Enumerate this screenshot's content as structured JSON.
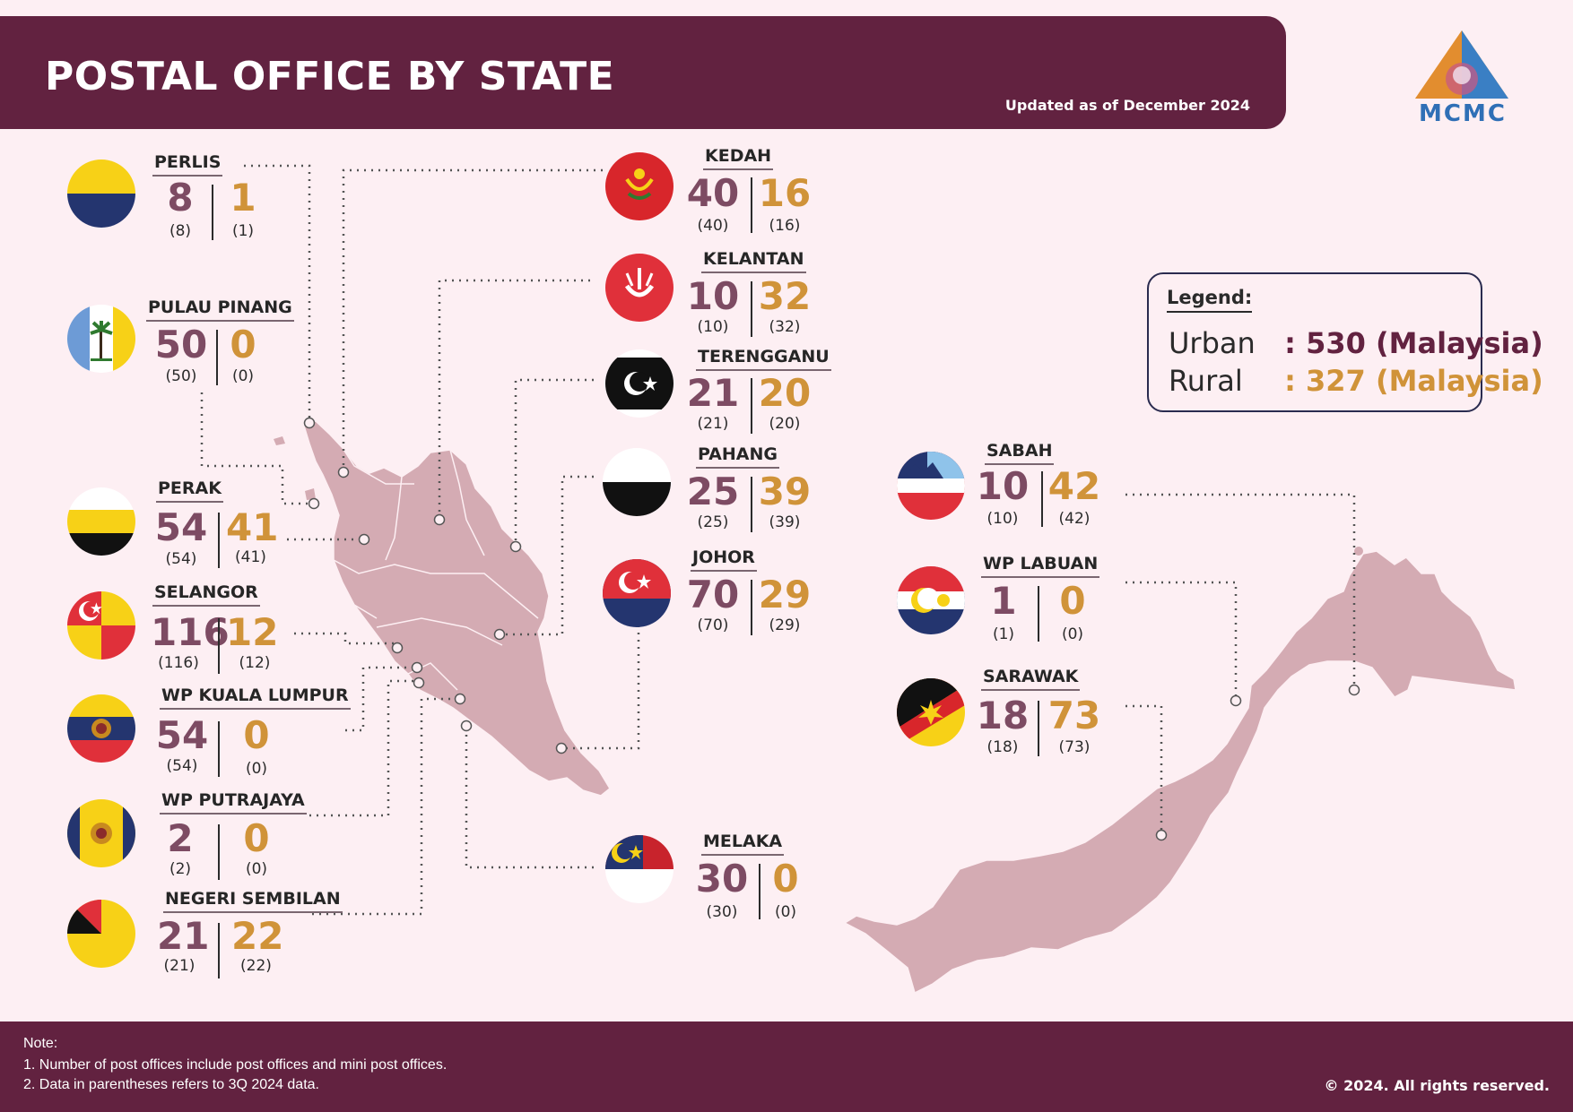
{
  "header": {
    "title": "POSTAL OFFICE BY STATE",
    "updated": "Updated as of December 2024",
    "logo_text": "MCMC"
  },
  "legend": {
    "title": "Legend:",
    "urban_label": "Urban",
    "urban_value": ": 530 (Malaysia)",
    "rural_label": "Rural",
    "rural_value": ": 327 (Malaysia)"
  },
  "colors": {
    "urban": "#7d4b63",
    "rural": "#d09339",
    "header": "#622240",
    "map_land": "#d4abb3"
  },
  "states": [
    {
      "id": "perlis",
      "name": "PERLIS",
      "urban": "8",
      "rural": "1",
      "urban_prev": "(8)",
      "rural_prev": "(1)",
      "flag": "perlis-flag-icon"
    },
    {
      "id": "pulau-pinang",
      "name": "PULAU PINANG",
      "urban": "50",
      "rural": "0",
      "urban_prev": "(50)",
      "rural_prev": "(0)",
      "flag": "penang-flag-icon"
    },
    {
      "id": "perak",
      "name": "PERAK",
      "urban": "54",
      "rural": "41",
      "urban_prev": "(54)",
      "rural_prev": "(41)",
      "flag": "perak-flag-icon"
    },
    {
      "id": "selangor",
      "name": "SELANGOR",
      "urban": "116",
      "rural": "12",
      "urban_prev": "(116)",
      "rural_prev": "(12)",
      "flag": "selangor-flag-icon"
    },
    {
      "id": "wp-kuala-lumpur",
      "name": "WP KUALA LUMPUR",
      "urban": "54",
      "rural": "0",
      "urban_prev": "(54)",
      "rural_prev": "(0)",
      "flag": "kuala-lumpur-flag-icon"
    },
    {
      "id": "wp-putrajaya",
      "name": "WP PUTRAJAYA",
      "urban": "2",
      "rural": "0",
      "urban_prev": "(2)",
      "rural_prev": "(0)",
      "flag": "putrajaya-flag-icon"
    },
    {
      "id": "negeri-sembilan",
      "name": "NEGERI SEMBILAN",
      "urban": "21",
      "rural": "22",
      "urban_prev": "(21)",
      "rural_prev": "(22)",
      "flag": "negeri-sembilan-flag-icon"
    },
    {
      "id": "kedah",
      "name": "KEDAH",
      "urban": "40",
      "rural": "16",
      "urban_prev": "(40)",
      "rural_prev": "(16)",
      "flag": "kedah-flag-icon"
    },
    {
      "id": "kelantan",
      "name": "KELANTAN",
      "urban": "10",
      "rural": "32",
      "urban_prev": "(10)",
      "rural_prev": "(32)",
      "flag": "kelantan-flag-icon"
    },
    {
      "id": "terengganu",
      "name": "TERENGGANU",
      "urban": "21",
      "rural": "20",
      "urban_prev": "(21)",
      "rural_prev": "(20)",
      "flag": "terengganu-flag-icon"
    },
    {
      "id": "pahang",
      "name": "PAHANG",
      "urban": "25",
      "rural": "39",
      "urban_prev": "(25)",
      "rural_prev": "(39)",
      "flag": "pahang-flag-icon"
    },
    {
      "id": "johor",
      "name": "JOHOR",
      "urban": "70",
      "rural": "29",
      "urban_prev": "(70)",
      "rural_prev": "(29)",
      "flag": "johor-flag-icon"
    },
    {
      "id": "melaka",
      "name": "MELAKA",
      "urban": "30",
      "rural": "0",
      "urban_prev": "(30)",
      "rural_prev": "(0)",
      "flag": "melaka-flag-icon"
    },
    {
      "id": "sabah",
      "name": "SABAH",
      "urban": "10",
      "rural": "42",
      "urban_prev": "(10)",
      "rural_prev": "(42)",
      "flag": "sabah-flag-icon"
    },
    {
      "id": "wp-labuan",
      "name": "WP LABUAN",
      "urban": "1",
      "rural": "0",
      "urban_prev": "(1)",
      "rural_prev": "(0)",
      "flag": "labuan-flag-icon"
    },
    {
      "id": "sarawak",
      "name": "SARAWAK",
      "urban": "18",
      "rural": "73",
      "urban_prev": "(18)",
      "rural_prev": "(73)",
      "flag": "sarawak-flag-icon"
    }
  ],
  "footer": {
    "note_title": "Note:",
    "notes": [
      "1.  Number of post offices include post offices and mini post offices.",
      "2.  Data in parentheses refers to 3Q 2024 data."
    ],
    "copyright": "© 2024. All rights reserved."
  }
}
